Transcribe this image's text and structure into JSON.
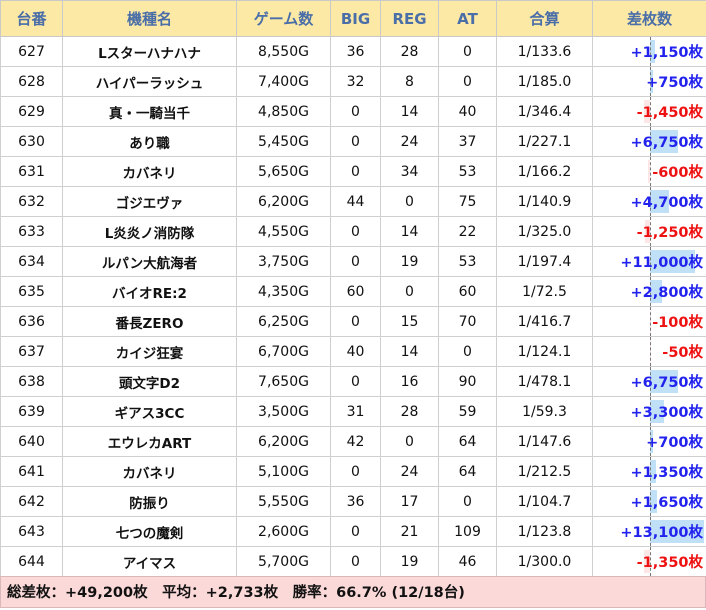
{
  "headers": {
    "machine_no": "台番",
    "model": "機種名",
    "games": "ゲーム数",
    "big": "BIG",
    "reg": "REG",
    "at": "AT",
    "combined": "合算",
    "diff": "差枚数"
  },
  "colors": {
    "positive": "#2222ee",
    "negative": "#ee1111",
    "header_bg": "#fde9a6",
    "footer_bg": "#fcd9d9"
  },
  "rows": [
    {
      "no": "627",
      "model": "Lスターハナハナ",
      "games": "8,550G",
      "big": "36",
      "reg": "28",
      "at": "0",
      "combined": "1/133.6",
      "diff": "+1,150枚",
      "value": 1150
    },
    {
      "no": "628",
      "model": "ハイパーラッシュ",
      "games": "7,400G",
      "big": "32",
      "reg": "8",
      "at": "0",
      "combined": "1/185.0",
      "diff": "+750枚",
      "value": 750
    },
    {
      "no": "629",
      "model": "真・一騎当千",
      "games": "4,850G",
      "big": "0",
      "reg": "14",
      "at": "40",
      "combined": "1/346.4",
      "diff": "-1,450枚",
      "value": -1450
    },
    {
      "no": "630",
      "model": "あり職",
      "games": "5,450G",
      "big": "0",
      "reg": "24",
      "at": "37",
      "combined": "1/227.1",
      "diff": "+6,750枚",
      "value": 6750
    },
    {
      "no": "631",
      "model": "カバネリ",
      "games": "5,650G",
      "big": "0",
      "reg": "34",
      "at": "53",
      "combined": "1/166.2",
      "diff": "-600枚",
      "value": -600
    },
    {
      "no": "632",
      "model": "ゴジエヴァ",
      "games": "6,200G",
      "big": "44",
      "reg": "0",
      "at": "75",
      "combined": "1/140.9",
      "diff": "+4,700枚",
      "value": 4700
    },
    {
      "no": "633",
      "model": "L炎炎ノ消防隊",
      "games": "4,550G",
      "big": "0",
      "reg": "14",
      "at": "22",
      "combined": "1/325.0",
      "diff": "-1,250枚",
      "value": -1250
    },
    {
      "no": "634",
      "model": "ルパン大航海者",
      "games": "3,750G",
      "big": "0",
      "reg": "19",
      "at": "53",
      "combined": "1/197.4",
      "diff": "+11,000枚",
      "value": 11000
    },
    {
      "no": "635",
      "model": "バイオRE:2",
      "games": "4,350G",
      "big": "60",
      "reg": "0",
      "at": "60",
      "combined": "1/72.5",
      "diff": "+2,800枚",
      "value": 2800
    },
    {
      "no": "636",
      "model": "番長ZERO",
      "games": "6,250G",
      "big": "0",
      "reg": "15",
      "at": "70",
      "combined": "1/416.7",
      "diff": "-100枚",
      "value": -100
    },
    {
      "no": "637",
      "model": "カイジ狂宴",
      "games": "6,700G",
      "big": "40",
      "reg": "14",
      "at": "0",
      "combined": "1/124.1",
      "diff": "-50枚",
      "value": -50
    },
    {
      "no": "638",
      "model": "頭文字D2",
      "games": "7,650G",
      "big": "0",
      "reg": "16",
      "at": "90",
      "combined": "1/478.1",
      "diff": "+6,750枚",
      "value": 6750
    },
    {
      "no": "639",
      "model": "ギアス3CC",
      "games": "3,500G",
      "big": "31",
      "reg": "28",
      "at": "59",
      "combined": "1/59.3",
      "diff": "+3,300枚",
      "value": 3300
    },
    {
      "no": "640",
      "model": "エウレカART",
      "games": "6,200G",
      "big": "42",
      "reg": "0",
      "at": "64",
      "combined": "1/147.6",
      "diff": "+700枚",
      "value": 700
    },
    {
      "no": "641",
      "model": "カバネリ",
      "games": "5,100G",
      "big": "0",
      "reg": "24",
      "at": "64",
      "combined": "1/212.5",
      "diff": "+1,350枚",
      "value": 1350
    },
    {
      "no": "642",
      "model": "防振り",
      "games": "5,550G",
      "big": "36",
      "reg": "17",
      "at": "0",
      "combined": "1/104.7",
      "diff": "+1,650枚",
      "value": 1650
    },
    {
      "no": "643",
      "model": "七つの魔剣",
      "games": "2,600G",
      "big": "0",
      "reg": "21",
      "at": "109",
      "combined": "1/123.8",
      "diff": "+13,100枚",
      "value": 13100
    },
    {
      "no": "644",
      "model": "アイマス",
      "games": "5,700G",
      "big": "0",
      "reg": "19",
      "at": "46",
      "combined": "1/300.0",
      "diff": "-1,350枚",
      "value": -1350
    }
  ],
  "footer": {
    "text": "総差枚：+49,200枚　平均：+2,733枚　勝率：66.7% (12/18台)"
  }
}
